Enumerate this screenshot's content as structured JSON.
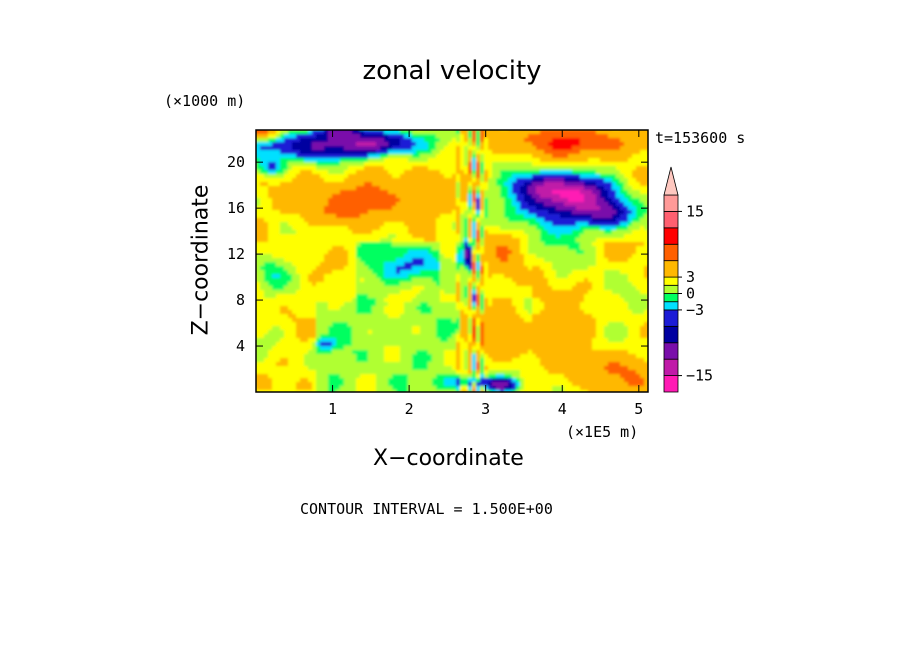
{
  "chart_data": {
    "type": "heatmap",
    "title": "zonal velocity",
    "xlabel": "X−coordinate",
    "ylabel": "Z−coordinate",
    "x_scale_label": "(×1E5 m)",
    "z_scale_label": "(×1000 m)",
    "time_label": "t=153600 s",
    "contour_interval_label": "CONTOUR INTERVAL = 1.500E+00",
    "x_ticks": [
      "1",
      "2",
      "3",
      "4",
      "5"
    ],
    "x_tick_values": [
      1,
      2,
      3,
      4,
      5
    ],
    "y_ticks": [
      "4",
      "8",
      "12",
      "16",
      "20"
    ],
    "y_tick_values": [
      4,
      8,
      12,
      16,
      20
    ],
    "xlim": [
      0,
      5.12
    ],
    "ylim": [
      0,
      22.8
    ],
    "colorbar": {
      "levels": [
        -18,
        -15,
        -12,
        -9,
        -6,
        -3,
        -1.5,
        0,
        1.5,
        3,
        6,
        9,
        12,
        15,
        18
      ],
      "colors": [
        "#ff1ab4",
        "#c01aa8",
        "#7a0eaa",
        "#0000a0",
        "#1c1cd6",
        "#00e0ff",
        "#00ff60",
        "#b0ff30",
        "#ffff00",
        "#ffb800",
        "#ff6000",
        "#ff0000",
        "#ff6070",
        "#ff9a98",
        "#ffc8c0"
      ],
      "tick_labels": [
        "15",
        "3",
        "0",
        "−3",
        "−15"
      ],
      "tick_values": [
        15,
        3,
        0,
        -3,
        -15
      ],
      "extend": "max"
    },
    "features": [
      {
        "x": [
          0.0,
          5.12
        ],
        "z": [
          0,
          5
        ],
        "value": 2,
        "note": "mostly light winds near surface"
      },
      {
        "x": [
          0.5,
          2.2
        ],
        "z": [
          15,
          19
        ],
        "value": 7,
        "note": "orange maximum"
      },
      {
        "x": [
          0.0,
          1.8
        ],
        "z": [
          20.5,
          22.8
        ],
        "value": -7,
        "note": "blue/navy band near top"
      },
      {
        "x": [
          3.4,
          5.0
        ],
        "z": [
          20,
          22.8
        ],
        "value": 9,
        "note": "orange-red band near top right"
      },
      {
        "x": [
          3.6,
          4.6
        ],
        "z": [
          15,
          18.5
        ],
        "value": -8,
        "note": "navy minimum"
      },
      {
        "x": [
          2.6,
          3.1
        ],
        "z": [
          0,
          22.8
        ],
        "value": 0,
        "note": "narrow disturbed column"
      }
    ]
  }
}
